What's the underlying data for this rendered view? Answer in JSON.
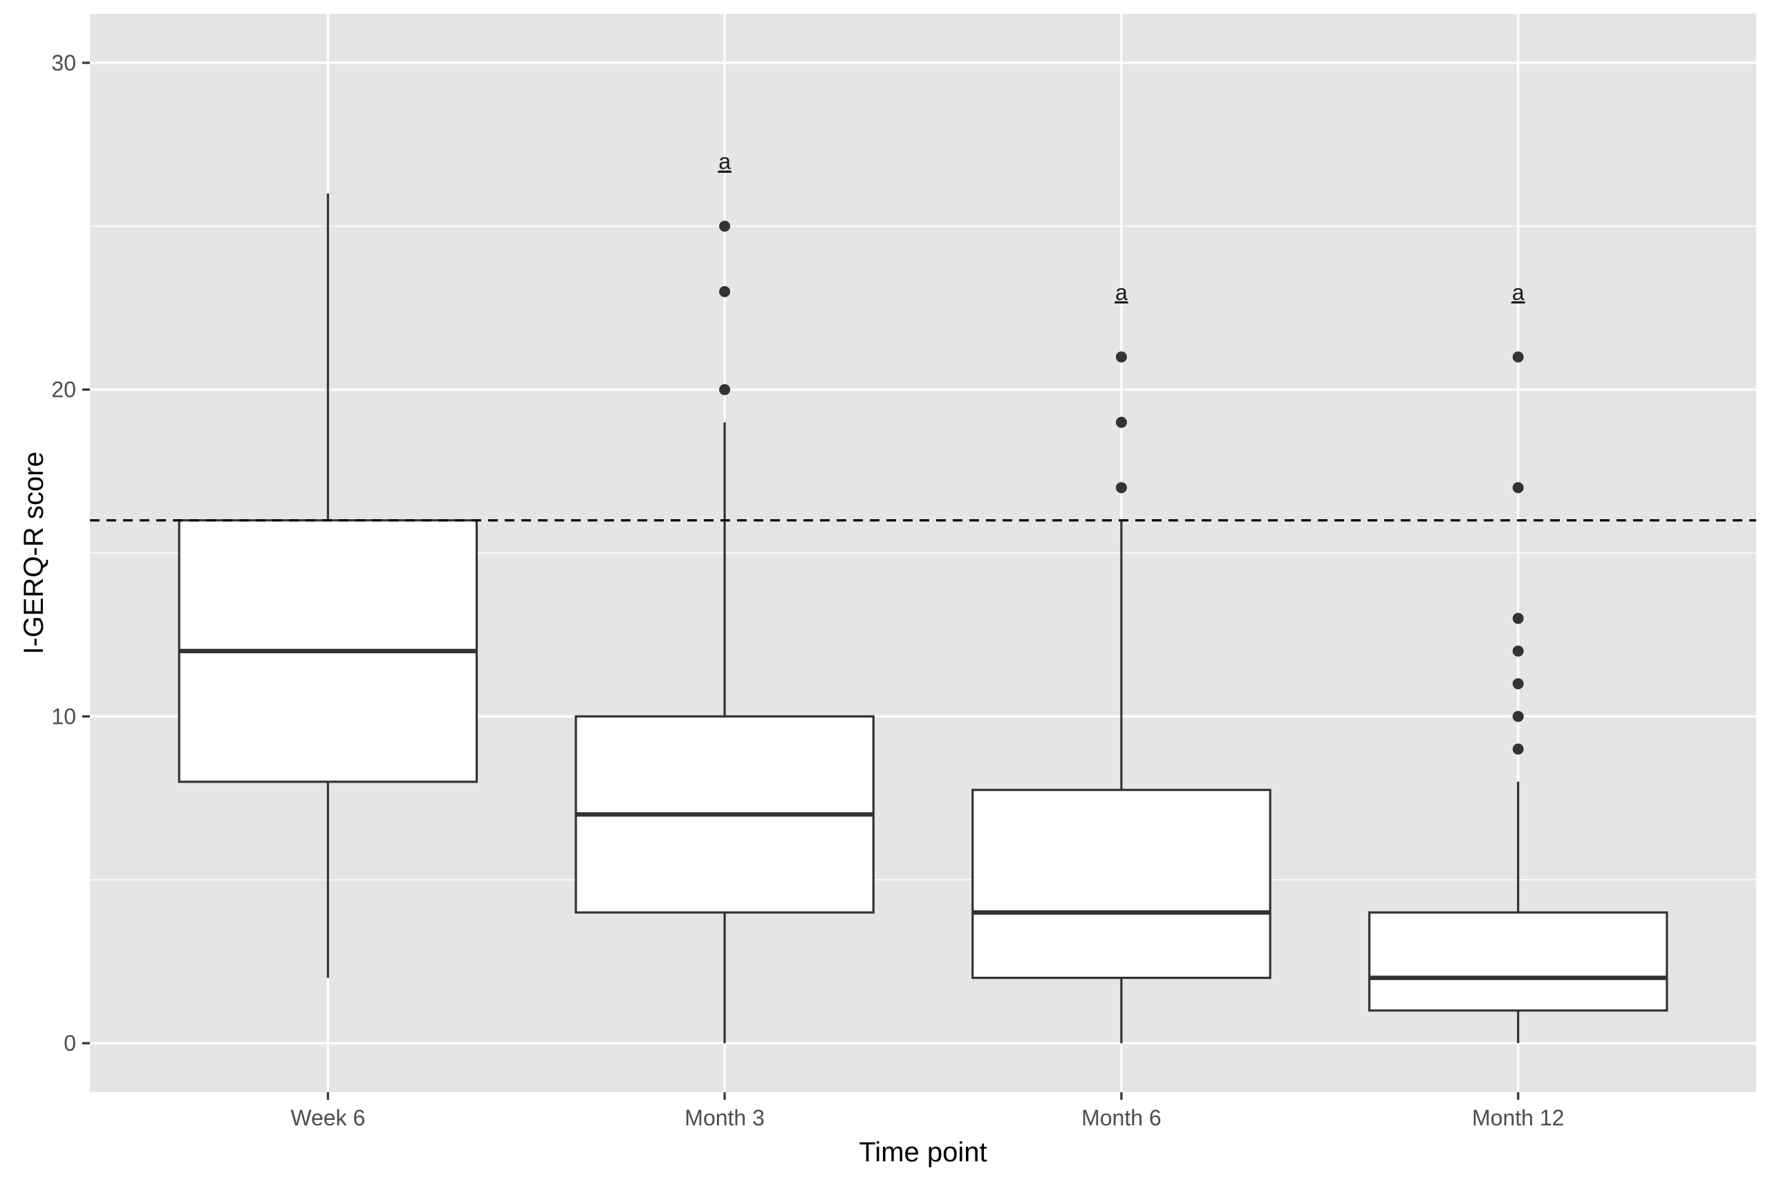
{
  "chart_data": {
    "type": "box",
    "xlabel": "Time point",
    "ylabel": "I-GERQ-R score",
    "ylim": [
      -1.5,
      31.5
    ],
    "yticks": [
      0,
      10,
      20,
      30
    ],
    "grid": true,
    "reference_line": {
      "y": 16,
      "style": "dashed"
    },
    "categories": [
      "Week 6",
      "Month 3",
      "Month 6",
      "Month 12"
    ],
    "boxes": [
      {
        "category": "Week 6",
        "whisker_low": 2,
        "q1": 8,
        "median": 12,
        "q3": 16,
        "whisker_high": 26,
        "outliers": [],
        "annotation": ""
      },
      {
        "category": "Month 3",
        "whisker_low": 0,
        "q1": 4,
        "median": 7,
        "q3": 10,
        "whisker_high": 19,
        "outliers": [
          20,
          23,
          25
        ],
        "annotation": "a",
        "annotation_y": 27
      },
      {
        "category": "Month 6",
        "whisker_low": 0,
        "q1": 2,
        "median": 4,
        "q3": 7.75,
        "whisker_high": 16,
        "outliers": [
          17,
          19,
          21
        ],
        "annotation": "a",
        "annotation_y": 23
      },
      {
        "category": "Month 12",
        "whisker_low": 0,
        "q1": 1,
        "median": 2,
        "q3": 4,
        "whisker_high": 8,
        "outliers": [
          9,
          10,
          11,
          12,
          13,
          17,
          21
        ],
        "annotation": "a",
        "annotation_y": 23
      }
    ]
  }
}
